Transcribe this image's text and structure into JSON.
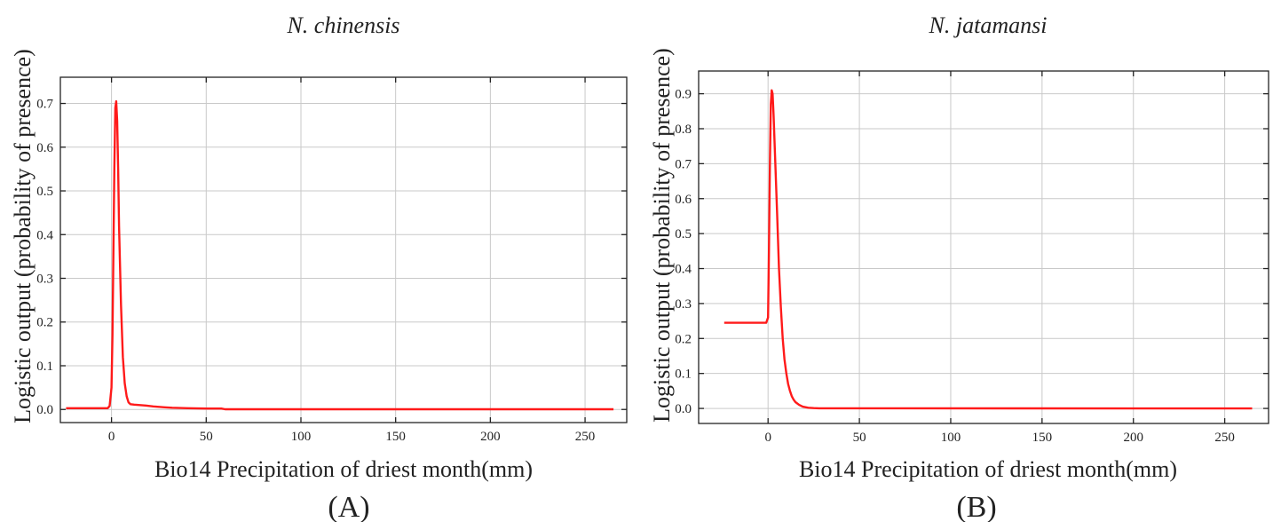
{
  "colors": {
    "curve": "#ff1a1a",
    "grid": "#c9c9c9",
    "frame": "#222222"
  },
  "chart_data": [
    {
      "type": "line",
      "title": "N. chinensis",
      "xlabel": "Bio14 Precipitation of driest month(mm)",
      "ylabel": "Logistic output (probability of presence)",
      "panel_label": "(A)",
      "xlim": [
        -27,
        272
      ],
      "ylim": [
        -0.03,
        0.76
      ],
      "xticks": [
        0,
        50,
        100,
        150,
        200,
        250
      ],
      "yticks": [
        0.0,
        0.1,
        0.2,
        0.3,
        0.4,
        0.5,
        0.6,
        0.7
      ],
      "ytick_labels": [
        "0.0",
        "0.1",
        "0.2",
        "0.3",
        "0.4",
        "0.5",
        "0.6",
        "0.7"
      ],
      "grid": true,
      "series": [
        {
          "x": [
            -24,
            -2,
            -1,
            0,
            0.5,
            1,
            1.5,
            2,
            2.5,
            3,
            3.5,
            4,
            5,
            6,
            7,
            8,
            9,
            10,
            12,
            15,
            18,
            20,
            22,
            25,
            28,
            32,
            40,
            50,
            58,
            60,
            265
          ],
          "y": [
            0.003,
            0.003,
            0.008,
            0.05,
            0.17,
            0.35,
            0.55,
            0.69,
            0.705,
            0.66,
            0.55,
            0.42,
            0.24,
            0.12,
            0.06,
            0.03,
            0.016,
            0.012,
            0.011,
            0.01,
            0.009,
            0.008,
            0.007,
            0.006,
            0.005,
            0.004,
            0.003,
            0.002,
            0.002,
            0.0005,
            0.0005
          ]
        }
      ]
    },
    {
      "type": "line",
      "title": "N. jatamansi",
      "xlabel": "Bio14 Precipitation of driest month(mm)",
      "ylabel": "Logistic output (probability of presence)",
      "panel_label": "(B)",
      "xlim": [
        -38,
        274
      ],
      "ylim": [
        -0.043,
        0.965
      ],
      "xticks": [
        0,
        50,
        100,
        150,
        200,
        250
      ],
      "yticks": [
        0.0,
        0.1,
        0.2,
        0.3,
        0.4,
        0.5,
        0.6,
        0.7,
        0.8,
        0.9
      ],
      "ytick_labels": [
        "0.0",
        "0.1",
        "0.2",
        "0.3",
        "0.4",
        "0.5",
        "0.6",
        "0.7",
        "0.8",
        "0.9"
      ],
      "grid": true,
      "series": [
        {
          "x": [
            -24,
            -1,
            0,
            0.5,
            1,
            1.5,
            2,
            2.5,
            3,
            4,
            5,
            6,
            7,
            8,
            9,
            10,
            11,
            12,
            13,
            14,
            15,
            17,
            19,
            22,
            25,
            28,
            265
          ],
          "y": [
            0.245,
            0.245,
            0.26,
            0.45,
            0.7,
            0.87,
            0.91,
            0.9,
            0.84,
            0.7,
            0.55,
            0.4,
            0.29,
            0.2,
            0.14,
            0.1,
            0.07,
            0.05,
            0.035,
            0.025,
            0.018,
            0.01,
            0.005,
            0.002,
            0.001,
            0.0005,
            0.0
          ]
        }
      ]
    }
  ]
}
